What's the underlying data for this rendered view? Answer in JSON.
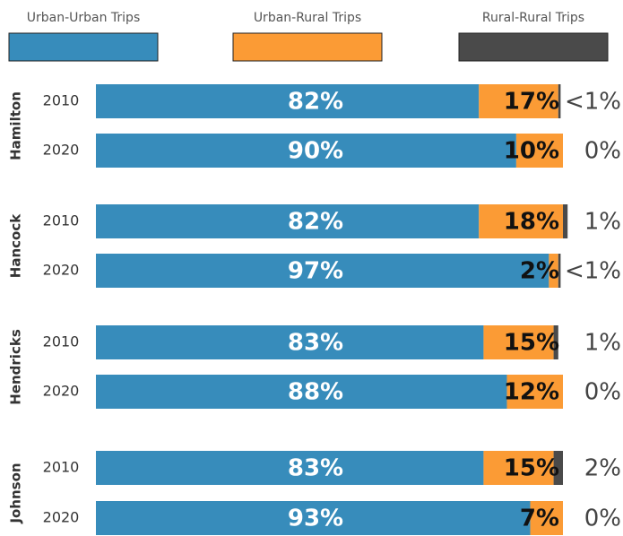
{
  "chart_data": {
    "type": "stacked-bar-horizontal",
    "groups": [
      "Hamilton",
      "Hancock",
      "Hendricks",
      "Johnson"
    ],
    "categories": [
      "2010",
      "2020",
      "2010",
      "2020",
      "2010",
      "2020",
      "2010",
      "2020"
    ],
    "xlim": [
      0,
      100
    ],
    "series": [
      {
        "name": "Urban-Urban Trips",
        "color": "#378cbb",
        "values": [
          82,
          90,
          82,
          97,
          83,
          88,
          83,
          93
        ],
        "value_labels": [
          "82%",
          "90%",
          "82%",
          "97%",
          "83%",
          "88%",
          "83%",
          "93%"
        ]
      },
      {
        "name": "Urban-Rural Trips",
        "color": "#fb9b35",
        "values": [
          17,
          10,
          18,
          2,
          15,
          12,
          15,
          7
        ],
        "value_labels": [
          "17%",
          "10%",
          "18%",
          "2%",
          "15%",
          "12%",
          "15%",
          "7%"
        ]
      },
      {
        "name": "Rural-Rural Trips",
        "color": "#4a4a4a",
        "values": [
          0.5,
          0,
          1,
          0.5,
          1,
          0,
          2,
          0
        ],
        "value_labels": [
          "<1%",
          "0%",
          "1%",
          "<1%",
          "1%",
          "0%",
          "2%",
          "0%"
        ]
      }
    ]
  }
}
